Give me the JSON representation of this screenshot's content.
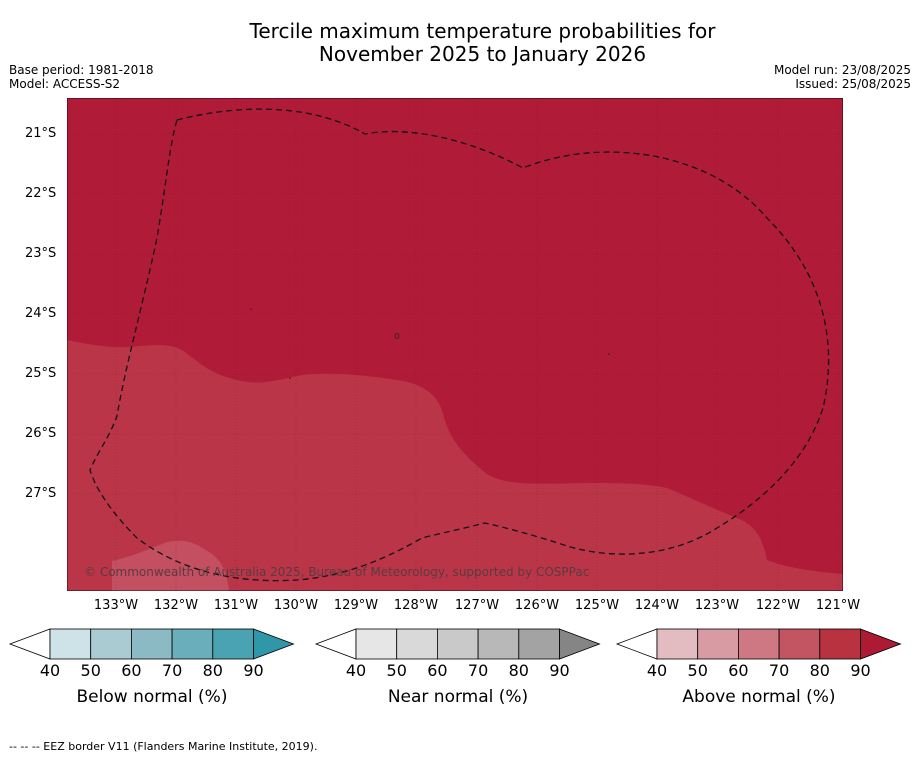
{
  "title_line1": "Tercile maximum temperature probabilities for",
  "title_line2": "November 2025 to January 2026",
  "base_period": "Base period: 1981-2018",
  "model": "Model: ACCESS-S2",
  "model_run": "Model run: 23/08/2025",
  "issued": "Issued: 25/08/2025",
  "lat_labels": [
    "21°S",
    "22°S",
    "23°S",
    "24°S",
    "25°S",
    "26°S",
    "27°S"
  ],
  "lon_labels": [
    "133°W",
    "132°W",
    "131°W",
    "130°W",
    "129°W",
    "128°W",
    "127°W",
    "126°W",
    "125°W",
    "124°W",
    "123°W",
    "122°W",
    "121°W"
  ],
  "copyright": "© Commonwealth of Australia 2025, Bureau of Meteorology, supported by COSPPac",
  "colorbars": [
    {
      "label": "Below normal (%)",
      "ticks": [
        "40",
        "50",
        "60",
        "70",
        "80",
        "90"
      ],
      "colors": [
        "#ffffff",
        "#cde3e8",
        "#aacbd2",
        "#8bb9c4",
        "#6aaebb",
        "#4aa3b2",
        "#2f97a8"
      ]
    },
    {
      "label": "Near normal (%)",
      "ticks": [
        "40",
        "50",
        "60",
        "70",
        "80",
        "90"
      ],
      "colors": [
        "#ffffff",
        "#e6e6e6",
        "#d9d9d9",
        "#c9c9c9",
        "#b8b8b8",
        "#a3a3a3",
        "#858585"
      ]
    },
    {
      "label": "Above normal (%)",
      "ticks": [
        "40",
        "50",
        "60",
        "70",
        "80",
        "90"
      ],
      "colors": [
        "#ffffff",
        "#e3bcc2",
        "#d89aa3",
        "#cd7882",
        "#c35461",
        "#b8323f",
        "#ad1a33"
      ]
    }
  ],
  "map_colors": {
    "above_90": "#b01b37",
    "above_80": "#bb3549",
    "above_70": "#c44f60"
  },
  "footnote": "--  --  -- EEZ border V11 (Flanders Marine Institute, 2019)."
}
